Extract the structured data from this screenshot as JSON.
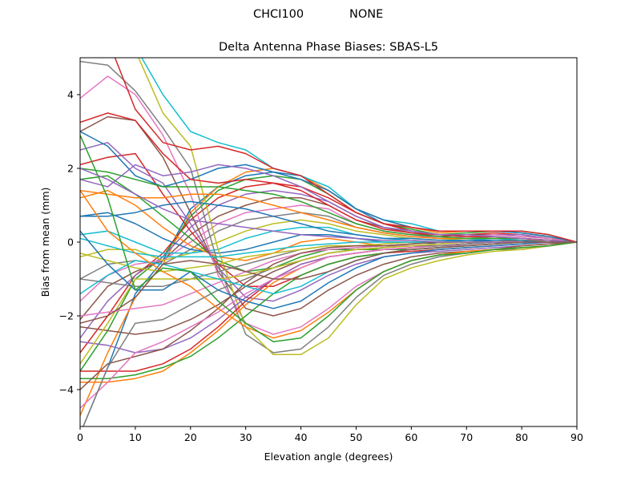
{
  "figure": {
    "suptitle_left": "CHCI100",
    "suptitle_right": "NONE"
  },
  "chart_data": {
    "type": "line",
    "title": "Delta Antenna Phase Biases: SBAS-L5",
    "xlabel": "Elevation angle (degrees)",
    "ylabel": "Bias from mean (mm)",
    "xlim": [
      0,
      90
    ],
    "ylim": [
      -5,
      5
    ],
    "xticks": [
      0,
      10,
      20,
      30,
      40,
      50,
      60,
      70,
      80,
      90
    ],
    "yticks": [
      -4,
      -2,
      0,
      2,
      4
    ],
    "ytick_labels": [
      "−4",
      "−2",
      "0",
      "2",
      "4"
    ],
    "grid": false,
    "legend": "none",
    "colors": [
      "#1f77b4",
      "#ff7f0e",
      "#2ca02c",
      "#d62728",
      "#9467bd",
      "#8c564b",
      "#e377c2",
      "#7f7f7f",
      "#bcbd22",
      "#17becf"
    ],
    "x": [
      0,
      5,
      10,
      15,
      20,
      25,
      30,
      35,
      40,
      45,
      50,
      55,
      60,
      65,
      70,
      75,
      80,
      85,
      90
    ],
    "series": [
      {
        "values": [
          -5.2,
          -3.4,
          -1.4,
          -0.5,
          0.9,
          1.5,
          1.8,
          1.9,
          1.8,
          1.4,
          0.9,
          0.5,
          0.3,
          0.2,
          0.2,
          0.2,
          0.2,
          0.1,
          0.0
        ]
      },
      {
        "values": [
          -4.7,
          -3.0,
          -1.5,
          -0.6,
          0.8,
          1.5,
          1.9,
          2.0,
          1.8,
          1.4,
          0.9,
          0.6,
          0.4,
          0.25,
          0.3,
          0.3,
          0.3,
          0.2,
          0.0
        ]
      },
      {
        "values": [
          -3.5,
          -2.4,
          -1.0,
          -0.4,
          0.7,
          1.4,
          1.7,
          1.8,
          1.7,
          1.3,
          0.8,
          0.5,
          0.35,
          0.2,
          0.25,
          0.3,
          0.25,
          0.15,
          0.0
        ]
      },
      {
        "values": [
          -3.0,
          -2.0,
          -0.9,
          -0.3,
          0.6,
          1.2,
          1.5,
          1.6,
          1.5,
          1.2,
          0.8,
          0.5,
          0.3,
          0.2,
          0.2,
          0.25,
          0.2,
          0.1,
          0.0
        ]
      },
      {
        "values": [
          -2.6,
          -1.6,
          -0.9,
          -0.4,
          0.4,
          1.0,
          1.3,
          1.4,
          1.3,
          1.1,
          0.7,
          0.4,
          0.3,
          0.2,
          0.2,
          0.2,
          0.2,
          0.1,
          0.0
        ]
      },
      {
        "values": [
          -2.1,
          -1.2,
          -0.8,
          -0.5,
          0.2,
          0.7,
          1.0,
          1.2,
          1.2,
          1.0,
          0.6,
          0.4,
          0.25,
          0.15,
          0.2,
          0.2,
          0.15,
          0.1,
          0.0
        ]
      },
      {
        "values": [
          -1.6,
          -0.9,
          -0.6,
          -0.5,
          0.0,
          0.5,
          0.8,
          0.9,
          1.0,
          0.9,
          0.5,
          0.3,
          0.2,
          0.1,
          0.15,
          0.2,
          0.15,
          0.1,
          0.0
        ]
      },
      {
        "values": [
          -1.0,
          -0.6,
          -0.5,
          -0.6,
          -0.2,
          0.3,
          0.6,
          0.7,
          0.8,
          0.7,
          0.4,
          0.25,
          0.15,
          0.1,
          0.1,
          0.15,
          0.1,
          0.05,
          0.0
        ]
      },
      {
        "values": [
          -0.4,
          -0.2,
          -0.2,
          -0.5,
          -0.3,
          0.0,
          0.3,
          0.5,
          0.6,
          0.5,
          0.3,
          0.2,
          0.1,
          0.05,
          0.1,
          0.1,
          0.1,
          0.05,
          0.0
        ]
      },
      {
        "values": [
          0.2,
          0.3,
          0.0,
          -0.3,
          -0.3,
          -0.2,
          0.1,
          0.3,
          0.4,
          0.4,
          0.2,
          0.1,
          0.05,
          0.0,
          0.05,
          0.1,
          0.05,
          0.0,
          0.0
        ]
      },
      {
        "values": [
          0.7,
          0.8,
          0.5,
          0.1,
          -0.2,
          -0.3,
          -0.2,
          0.0,
          0.2,
          0.2,
          0.1,
          0.0,
          0.0,
          -0.05,
          0.0,
          0.05,
          0.05,
          0.0,
          0.0
        ]
      },
      {
        "values": [
          1.2,
          1.4,
          1.0,
          0.4,
          -0.1,
          -0.4,
          -0.5,
          -0.3,
          0.0,
          0.1,
          0.0,
          -0.1,
          -0.1,
          -0.1,
          -0.05,
          0.0,
          0.0,
          0.0,
          0.0
        ]
      },
      {
        "values": [
          1.7,
          1.8,
          1.3,
          0.7,
          0.1,
          -0.5,
          -0.8,
          -0.7,
          -0.4,
          -0.2,
          -0.2,
          -0.2,
          -0.2,
          -0.15,
          -0.1,
          -0.05,
          0.0,
          0.0,
          0.0
        ]
      },
      {
        "values": [
          2.1,
          2.3,
          2.4,
          1.3,
          0.3,
          -0.6,
          -1.2,
          -1.2,
          -0.9,
          -0.6,
          -0.4,
          -0.3,
          -0.25,
          -0.2,
          -0.15,
          -0.1,
          -0.05,
          0.0,
          0.0
        ]
      },
      {
        "values": [
          2.5,
          2.7,
          2.0,
          1.6,
          0.5,
          -0.7,
          -1.5,
          -1.6,
          -1.3,
          -0.9,
          -0.6,
          -0.4,
          -0.3,
          -0.25,
          -0.2,
          -0.15,
          -0.1,
          -0.05,
          0.0
        ]
      },
      {
        "values": [
          3.0,
          3.4,
          3.3,
          2.3,
          0.8,
          -0.8,
          -1.8,
          -2.0,
          -1.8,
          -1.3,
          -0.9,
          -0.6,
          -0.4,
          -0.3,
          -0.25,
          -0.2,
          -0.1,
          -0.05,
          0.0
        ]
      },
      {
        "values": [
          3.9,
          4.5,
          4.0,
          2.9,
          1.3,
          -0.9,
          -2.2,
          -2.5,
          -2.3,
          -1.8,
          -1.2,
          -0.8,
          -0.5,
          -0.35,
          -0.3,
          -0.2,
          -0.15,
          -0.1,
          0.0
        ]
      },
      {
        "values": [
          4.9,
          4.8,
          4.1,
          3.1,
          2.0,
          -0.6,
          -2.5,
          -3.0,
          -2.9,
          -2.3,
          -1.5,
          -0.9,
          -0.6,
          -0.4,
          -0.3,
          -0.2,
          -0.2,
          -0.1,
          0.0
        ]
      },
      {
        "values": [
          5.6,
          5.5,
          5.2,
          3.5,
          2.6,
          -0.2,
          -2.3,
          -3.05,
          -3.05,
          -2.6,
          -1.7,
          -1.0,
          -0.7,
          -0.5,
          -0.35,
          -0.25,
          -0.2,
          -0.1,
          0.0
        ]
      },
      {
        "values": [
          5.5,
          5.4,
          5.3,
          4.0,
          3.0,
          2.7,
          2.5,
          2.0,
          1.8,
          1.5,
          0.9,
          0.6,
          0.5,
          0.3,
          0.3,
          0.3,
          0.3,
          0.2,
          0.0
        ]
      },
      {
        "values": [
          3.0,
          2.6,
          1.8,
          1.5,
          1.7,
          2.0,
          2.1,
          1.9,
          1.7,
          1.4,
          0.9,
          0.6,
          0.4,
          0.3,
          0.3,
          0.3,
          0.25,
          0.15,
          0.0
        ]
      },
      {
        "values": [
          -3.8,
          -3.8,
          -3.7,
          -3.5,
          -3.0,
          -2.4,
          -1.7,
          -1.1,
          -0.7,
          -0.4,
          -0.3,
          -0.2,
          -0.15,
          -0.1,
          -0.05,
          0.0,
          0.05,
          0.05,
          0.0
        ]
      },
      {
        "values": [
          -3.7,
          -3.7,
          -3.6,
          -3.4,
          -3.1,
          -2.6,
          -2.0,
          -1.4,
          -0.9,
          -0.6,
          -0.4,
          -0.3,
          -0.2,
          -0.15,
          -0.1,
          -0.05,
          0.0,
          0.0,
          0.0
        ]
      },
      {
        "values": [
          -3.5,
          -3.5,
          -3.5,
          -3.3,
          -2.9,
          -2.3,
          -1.6,
          -1.0,
          -0.6,
          -0.4,
          -0.3,
          -0.2,
          -0.15,
          -0.1,
          -0.05,
          0.0,
          0.0,
          0.0,
          0.0
        ]
      },
      {
        "values": [
          -2.7,
          -2.8,
          -3.0,
          -2.9,
          -2.6,
          -2.1,
          -1.5,
          -1.0,
          -0.6,
          -0.4,
          -0.3,
          -0.2,
          -0.15,
          -0.1,
          -0.05,
          0.0,
          0.0,
          0.0,
          0.0
        ]
      },
      {
        "values": [
          -2.3,
          -2.4,
          -2.5,
          -2.4,
          -2.1,
          -1.7,
          -1.2,
          -0.8,
          -0.5,
          -0.3,
          -0.2,
          -0.15,
          -0.1,
          -0.1,
          -0.05,
          0.0,
          0.0,
          0.0,
          0.0
        ]
      },
      {
        "values": [
          -2.0,
          -1.9,
          -1.8,
          -1.7,
          -1.4,
          -1.1,
          -0.8,
          -0.5,
          -0.3,
          -0.2,
          -0.15,
          -0.1,
          -0.1,
          -0.05,
          0.0,
          0.0,
          0.0,
          0.0,
          0.0
        ]
      },
      {
        "values": [
          -1.0,
          -1.1,
          -1.2,
          -1.2,
          -1.0,
          -0.8,
          -0.6,
          -0.4,
          -0.2,
          -0.1,
          -0.1,
          -0.1,
          -0.05,
          0.0,
          0.0,
          0.0,
          0.0,
          0.0,
          0.0
        ]
      },
      {
        "values": [
          -0.3,
          -0.5,
          -0.7,
          -0.8,
          -0.7,
          -0.6,
          -0.4,
          -0.3,
          -0.2,
          -0.1,
          -0.1,
          -0.05,
          0.0,
          0.0,
          0.0,
          0.0,
          0.0,
          0.0,
          0.0
        ]
      },
      {
        "values": [
          0.1,
          -0.1,
          -0.3,
          -0.4,
          -0.4,
          -0.4,
          -0.3,
          -0.2,
          -0.1,
          -0.05,
          0.0,
          0.0,
          0.0,
          0.0,
          0.0,
          0.0,
          0.0,
          0.0,
          0.0
        ]
      },
      {
        "values": [
          0.7,
          0.7,
          0.8,
          1.0,
          1.1,
          1.0,
          0.9,
          0.7,
          0.5,
          0.3,
          0.2,
          0.1,
          0.1,
          0.05,
          0.05,
          0.05,
          0.05,
          0.0,
          0.0
        ]
      },
      {
        "values": [
          1.4,
          1.3,
          1.2,
          1.2,
          1.3,
          1.3,
          1.2,
          1.0,
          0.8,
          0.6,
          0.4,
          0.25,
          0.15,
          0.1,
          0.1,
          0.1,
          0.1,
          0.05,
          0.0
        ]
      },
      {
        "values": [
          2.0,
          1.9,
          1.7,
          1.5,
          1.5,
          1.5,
          1.4,
          1.3,
          1.1,
          0.8,
          0.5,
          0.3,
          0.2,
          0.15,
          0.1,
          0.1,
          0.1,
          0.05,
          0.0
        ]
      },
      {
        "values": [
          3.25,
          3.5,
          3.3,
          2.4,
          1.7,
          1.6,
          1.7,
          1.6,
          1.4,
          1.0,
          0.6,
          0.35,
          0.25,
          0.2,
          0.15,
          0.15,
          0.1,
          0.05,
          0.0
        ]
      },
      {
        "values": [
          1.7,
          1.5,
          2.1,
          1.8,
          1.9,
          2.1,
          2.0,
          1.8,
          1.5,
          1.1,
          0.7,
          0.4,
          0.3,
          0.2,
          0.2,
          0.15,
          0.1,
          0.05,
          0.0
        ]
      },
      {
        "values": [
          -4.0,
          -3.3,
          -3.1,
          -2.9,
          -2.4,
          -1.8,
          -1.1,
          -0.6,
          -0.3,
          -0.15,
          -0.1,
          -0.1,
          -0.05,
          0.0,
          0.0,
          0.0,
          0.0,
          0.0,
          0.0
        ]
      },
      {
        "values": [
          -4.5,
          -3.8,
          -3.0,
          -2.7,
          -2.3,
          -1.9,
          -1.4,
          -1.0,
          -0.7,
          -0.4,
          -0.3,
          -0.2,
          -0.15,
          -0.1,
          -0.1,
          -0.05,
          0.0,
          0.0,
          0.0
        ]
      },
      {
        "values": [
          -5.2,
          -3.4,
          -2.2,
          -2.1,
          -1.7,
          -1.3,
          -1.0,
          -0.7,
          -0.5,
          -0.3,
          -0.2,
          -0.15,
          -0.1,
          -0.1,
          -0.05,
          0.0,
          0.0,
          0.0,
          0.0
        ]
      },
      {
        "values": [
          -3.3,
          -2.2,
          -1.0,
          -1.0,
          -1.0,
          -1.0,
          -0.9,
          -0.7,
          -0.5,
          -0.3,
          -0.2,
          -0.15,
          -0.1,
          -0.05,
          0.0,
          0.0,
          0.0,
          0.0,
          0.0
        ]
      },
      {
        "values": [
          -1.4,
          -0.9,
          -0.5,
          -0.6,
          -0.8,
          -1.0,
          -1.2,
          -1.4,
          -1.2,
          -0.8,
          -0.5,
          -0.3,
          -0.2,
          -0.15,
          -0.1,
          -0.05,
          0.0,
          0.0,
          0.0
        ]
      },
      {
        "values": [
          0.3,
          -0.6,
          -1.3,
          -1.3,
          -0.8,
          -1.3,
          -1.6,
          -1.8,
          -1.6,
          -1.1,
          -0.7,
          -0.4,
          -0.3,
          -0.2,
          -0.15,
          -0.1,
          -0.05,
          0.0,
          0.0
        ]
      },
      {
        "values": [
          1.4,
          0.3,
          -0.3,
          -0.8,
          -1.2,
          -1.8,
          -2.3,
          -2.6,
          -2.4,
          -1.9,
          -1.3,
          -0.8,
          -0.5,
          -0.35,
          -0.25,
          -0.2,
          -0.15,
          -0.1,
          0.0
        ]
      },
      {
        "values": [
          2.9,
          1.2,
          -1.3,
          -0.7,
          -0.8,
          -1.6,
          -2.2,
          -2.7,
          -2.6,
          -2.0,
          -1.3,
          -0.8,
          -0.5,
          -0.35,
          -0.3,
          -0.2,
          -0.15,
          -0.1,
          0.0
        ]
      },
      {
        "values": [
          5.6,
          5.5,
          3.6,
          2.7,
          2.5,
          2.6,
          2.4,
          2.0,
          1.8,
          1.3,
          0.8,
          0.5,
          0.4,
          0.3,
          0.3,
          0.3,
          0.3,
          0.2,
          0.0
        ]
      },
      {
        "values": [
          2.0,
          1.7,
          1.3,
          0.9,
          0.6,
          0.5,
          0.4,
          0.3,
          0.2,
          0.15,
          0.1,
          0.05,
          0.05,
          0.0,
          0.0,
          0.0,
          0.0,
          0.0,
          0.0
        ]
      },
      {
        "values": [
          -2.2,
          -2.0,
          -1.5,
          -0.6,
          -0.5,
          -0.6,
          -0.8,
          -1.0,
          -1.0,
          -0.8,
          -0.5,
          -0.3,
          -0.2,
          -0.15,
          -0.1,
          -0.05,
          0.0,
          0.0,
          0.0
        ]
      }
    ]
  }
}
